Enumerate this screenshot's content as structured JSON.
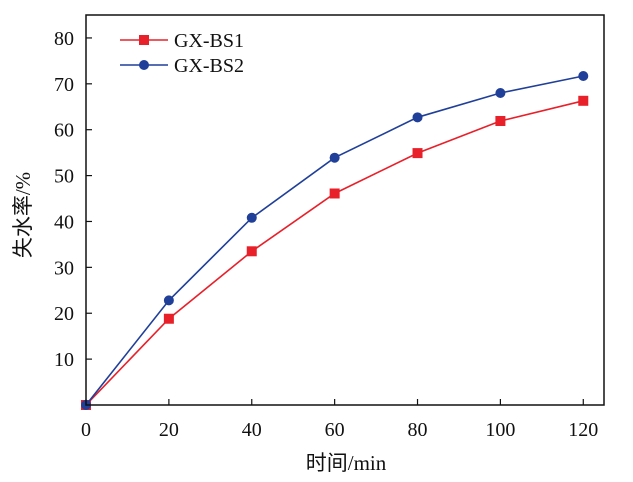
{
  "chart_data": {
    "type": "line",
    "title": "",
    "xlabel": "时间/min",
    "ylabel": "失水率/%",
    "x": [
      0,
      20,
      40,
      60,
      80,
      100,
      120
    ],
    "xlim": [
      0,
      125
    ],
    "ylim": [
      0,
      85
    ],
    "xticks": [
      0,
      20,
      40,
      60,
      80,
      100,
      120
    ],
    "yticks": [
      10,
      20,
      30,
      40,
      50,
      60,
      70,
      80
    ],
    "grid": false,
    "legend_position": "top-left",
    "series": [
      {
        "name": "GX-BS1",
        "marker": "square",
        "color": "#e8202a",
        "values": [
          0,
          18.8,
          33.5,
          46.1,
          54.9,
          61.9,
          66.3
        ]
      },
      {
        "name": "GX-BS2",
        "marker": "circle",
        "color": "#1f3f99",
        "values": [
          0,
          22.8,
          40.8,
          53.9,
          62.7,
          68.0,
          71.7
        ]
      }
    ]
  }
}
